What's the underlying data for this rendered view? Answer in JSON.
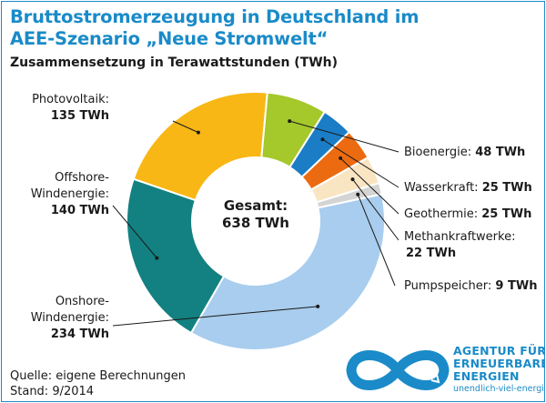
{
  "title_line1": "Bruttostromerzeugung in Deutschland im",
  "title_line2": "AEE-Szenario „Neue Stromwelt“",
  "subtitle": "Zusammensetzung in Terawattstunden (TWh)",
  "center_label_line1": "Gesamt:",
  "center_label_line2": "638 TWh",
  "footer": {
    "source": "Quelle: eigene Berechnungen",
    "date": "Stand: 9/2014"
  },
  "logo": {
    "line1": "AGENTUR FÜR",
    "line2": "ERNEUERBARE",
    "line3": "ENERGIEN",
    "url": "unendlich-viel-energie.de",
    "icon": "infinity-logo-icon",
    "color": "#1a8bc8"
  },
  "chart_data": {
    "type": "pie",
    "donut": true,
    "unit": "TWh",
    "total": 638,
    "series": [
      {
        "values": [
          135,
          48,
          25,
          25,
          22,
          9,
          234,
          140
        ],
        "categories": [
          "Photovoltaik",
          "Bioenergie",
          "Wasserkraft",
          "Geothermie",
          "Methankraftwerke",
          "Pumpspeicher",
          "Onshore-Windenergie",
          "Offshore-Windenergie"
        ],
        "colors": [
          "#f8b714",
          "#a5c82a",
          "#1a7dc6",
          "#ec6b11",
          "#fae5c3",
          "#d4d4d4",
          "#a8cdee",
          "#138081"
        ]
      }
    ],
    "slice_labels": [
      {
        "lines": [
          "Photovoltaik:"
        ],
        "value": "135 TWh"
      },
      {
        "lines": [
          "Bioenergie:"
        ],
        "value": "48 TWh"
      },
      {
        "lines": [
          "Wasserkraft:"
        ],
        "value": "25 TWh"
      },
      {
        "lines": [
          "Geothermie:"
        ],
        "value": "25 TWh"
      },
      {
        "lines": [
          "Methankraftwerke:"
        ],
        "value": "22 TWh"
      },
      {
        "lines": [
          "Pumpspeicher:"
        ],
        "value": "9 TWh"
      },
      {
        "lines": [
          "Onshore-",
          "Windenergie:"
        ],
        "value": "234 TWh"
      },
      {
        "lines": [
          "Offshore-",
          "Windenergie:"
        ],
        "value": "140 TWh"
      }
    ]
  }
}
